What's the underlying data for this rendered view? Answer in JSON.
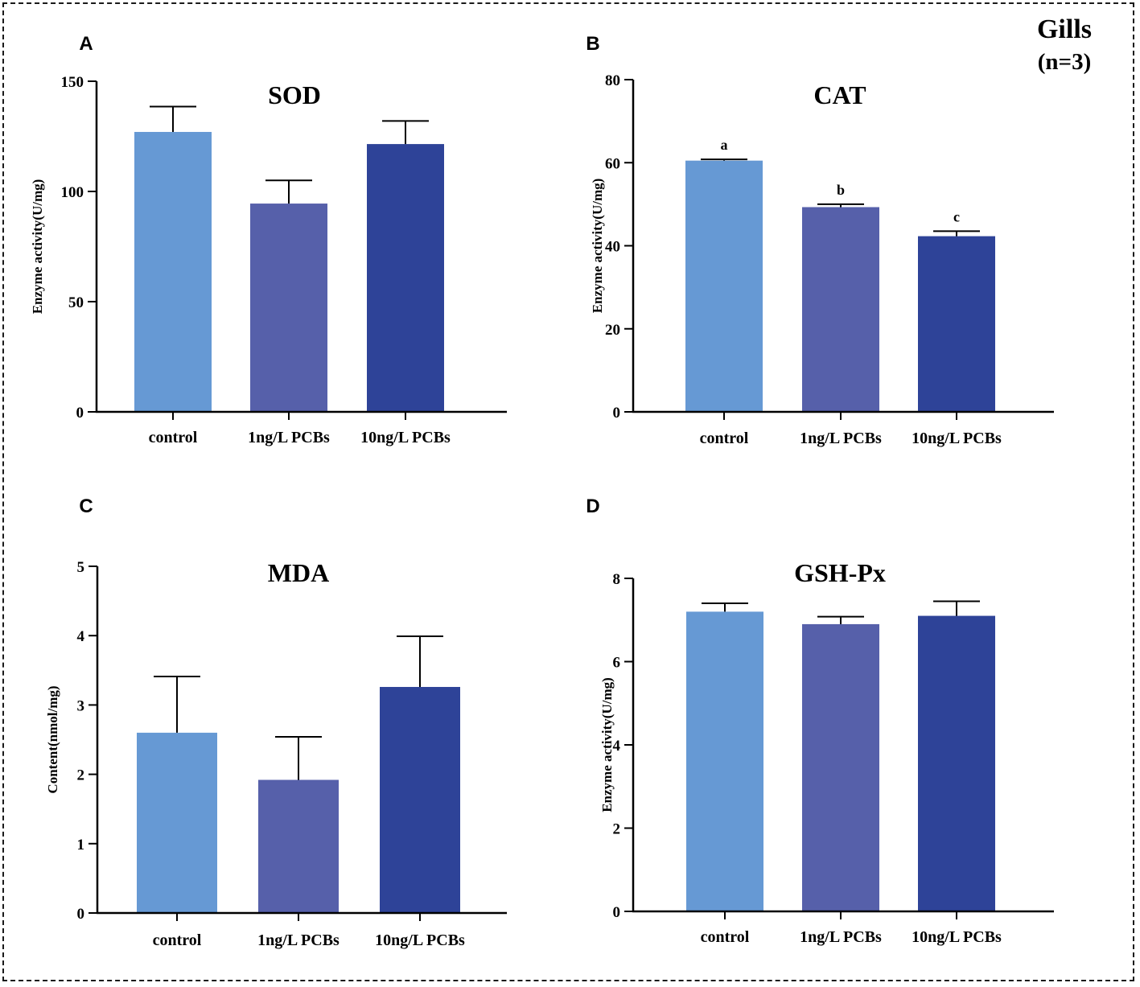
{
  "figure_label": {
    "title": "Gills",
    "subtitle": "(n=3)"
  },
  "colors": {
    "control": "#6699D4",
    "ng1": "#5660AA",
    "ng10": "#2E4398",
    "axis": "#000000"
  },
  "chart_data": [
    {
      "panel": "A",
      "type": "bar",
      "title": "SOD",
      "categories": [
        "control",
        "1ng/L PCBs",
        "10ng/L PCBs"
      ],
      "values": [
        127,
        94.5,
        121.5
      ],
      "errors": [
        11.5,
        10.5,
        10.5
      ],
      "sig_labels": [],
      "ylabel": "Enzyme activity(U/mg)",
      "ylim": [
        0,
        150
      ],
      "yticks": [
        0,
        50,
        100,
        150
      ],
      "ytick_labels": [
        "0",
        "50",
        "100",
        "150"
      ]
    },
    {
      "panel": "B",
      "type": "bar",
      "title": "CAT",
      "categories": [
        "control",
        "1ng/L PCBs",
        "10ng/L PCBs"
      ],
      "values": [
        60.5,
        49.3,
        42.3
      ],
      "errors": [
        0.3,
        0.7,
        1.2
      ],
      "sig_labels": [
        "a",
        "b",
        "c"
      ],
      "ylabel": "Enzyme activity(U/mg)",
      "ylim": [
        0,
        80
      ],
      "yticks": [
        0,
        20,
        40,
        60,
        80
      ],
      "ytick_labels": [
        "0",
        "20",
        "40",
        "60",
        "80"
      ]
    },
    {
      "panel": "C",
      "type": "bar",
      "title": "MDA",
      "categories": [
        "control",
        "1ng/L PCBs",
        "10ng/L PCBs"
      ],
      "values": [
        2.6,
        1.92,
        3.26
      ],
      "errors": [
        0.81,
        0.62,
        0.73
      ],
      "sig_labels": [],
      "ylabel": "Content(nmol/mg)",
      "ylim": [
        0,
        5
      ],
      "yticks": [
        0,
        1,
        2,
        3,
        4,
        5
      ],
      "ytick_labels": [
        "0",
        "1",
        "2",
        "3",
        "4",
        "5"
      ]
    },
    {
      "panel": "D",
      "type": "bar",
      "title": "GSH-Px",
      "categories": [
        "control",
        "1ng/L PCBs",
        "10ng/L PCBs"
      ],
      "values": [
        7.2,
        6.9,
        7.1
      ],
      "errors": [
        0.2,
        0.18,
        0.35
      ],
      "sig_labels": [],
      "ylabel": "Enzyme activity(U/mg)",
      "ylim": [
        0,
        8
      ],
      "yticks": [
        0,
        2,
        4,
        6,
        8
      ],
      "ytick_labels": [
        "0",
        "2",
        "4",
        "6",
        "8"
      ]
    }
  ]
}
